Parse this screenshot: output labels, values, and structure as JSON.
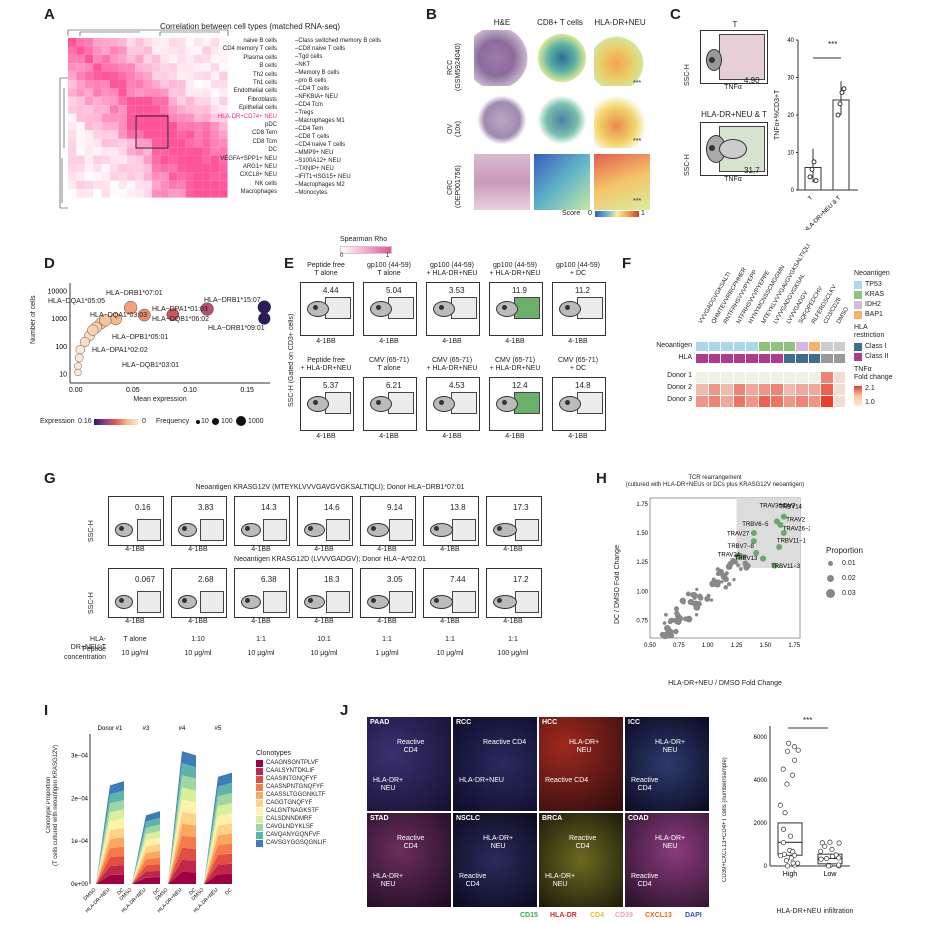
{
  "panels": {
    "A": "A",
    "B": "B",
    "C": "C",
    "D": "D",
    "E": "E",
    "F": "F",
    "G": "G",
    "H": "H",
    "I": "I",
    "J": "J"
  },
  "A": {
    "title": "Correlation between cell types (matched RNA-seq)",
    "left_labels": [
      "naive B cells",
      "CD4 memory T cells",
      "Plasma cells",
      "B cells",
      "Th2 cells",
      "Th1 cells",
      "Endothelial cells",
      "Fibroblasts",
      "Epithelial cells",
      "HLA-DR+CD74+ NEU",
      "pDC",
      "CD8 Tem",
      "CD8 Tcm",
      "DC",
      "VEGFA+SPP1+ NEU",
      "ARG1+ NEU",
      "CXCL8+ NEU",
      "NK cells",
      "Macrophages"
    ],
    "right_labels": [
      "Class switched memory B cells",
      "CD8 naive T cells",
      "Tgd cells",
      "NKT",
      "Memory B cells",
      "pro B cells",
      "CD4 T cells",
      "NFKBIA+ NEU",
      "CD4 Tcm",
      "Tregs",
      "Macrophages M1",
      "CD4 Tem",
      "CD8 T cells",
      "CD4 naive T cells",
      "MMP9+ NEU",
      "S100A12+ NEU",
      "TXNIP+ NEU",
      "IFIT1+ISG15+ NEU",
      "Macrophages M2",
      "Monocytes"
    ],
    "legend_title": "Spearman Rho",
    "legend_min": "0",
    "legend_max": "1"
  },
  "B": {
    "col_headers": [
      "H&E",
      "CD8+ T cells",
      "HLA-DR+NEU"
    ],
    "row_labels": [
      "RCC\n(GSM5924040)",
      "OV\n(10x)",
      "CRC\n(OEP001756)"
    ],
    "stars": "***",
    "score_label": "Score",
    "score_min": "0",
    "score_max": "1"
  },
  "C": {
    "flow_top_title": "T",
    "flow_bottom_title": "HLA-DR+NEU & T",
    "yaxis": "SSC-H",
    "xaxis": "TNFα",
    "pct_top": "4,90",
    "pct_bottom": "31,7",
    "bar_ylabel": "TNFα+%CD3+T",
    "bar_categories": [
      "T",
      "HLA-DR+NEU & T"
    ],
    "stars": "***",
    "yticks": [
      "0",
      "10",
      "20",
      "30",
      "40"
    ]
  },
  "D": {
    "ylabel": "Number of cells",
    "xlabel": "Mean expression",
    "yticks": [
      "10",
      "100",
      "1000",
      "10000"
    ],
    "xticks": [
      "0.00",
      "0.05",
      "0.10",
      "0.15"
    ],
    "point_labels": [
      "HLA−DRB1*07:01",
      "HLA−DQA1*05:05",
      "HLA−DRB1*15:07",
      "HLA−DPA1*01:03",
      "HLA−DQA1*03:03",
      "HLA−DQB1*06:02",
      "HLA−DRB1*09:01",
      "HLA−DPB1*05:01",
      "HLA−DPA1*02:02",
      "HLA−DQB1*03:01"
    ],
    "legend_expr": "Expression",
    "legend_expr_max": "0.16",
    "legend_expr_min": "0",
    "legend_freq": "Frequency",
    "freq_values": [
      "10",
      "100",
      "1000"
    ]
  },
  "E": {
    "yaxis": "SSC-H (Gated on CD3+ cells)",
    "xaxis": "4-1BB",
    "row1": [
      {
        "title": "Peptide free\nT alone",
        "pct": "4.44"
      },
      {
        "title": "gp100 (44-59)\nT alone",
        "pct": "5.04"
      },
      {
        "title": "gp100 (44-59)\n+ HLA-DR+NEU",
        "pct": "3.53"
      },
      {
        "title": "gp100 (44-59)\n+ HLA-DR+NEU",
        "pct": "11.9"
      },
      {
        "title": "gp100 (44-59)\n+ DC",
        "pct": "11.2"
      }
    ],
    "row2": [
      {
        "title": "Peptide free\n+ HLA-DR+NEU",
        "pct": "5.37"
      },
      {
        "title": "CMV (65-71)\nT alone",
        "pct": "6.21"
      },
      {
        "title": "CMV (65-71)\n+ HLA-DR+NEU",
        "pct": "4.53"
      },
      {
        "title": "CMV (65-71)\n+ HLA-DR+NEU",
        "pct": "12.4"
      },
      {
        "title": "CMV (65-71)\n+ DC",
        "pct": "14.8"
      }
    ]
  },
  "F": {
    "peptides": [
      "VVVGADGVGKSALTI",
      "QHMTEVVRRCPHHER",
      "RNTFRHSVVVPYEPP",
      "NTFRHSVVVPYEPPE",
      "HYNYMCNSSCMGGMN",
      "MTEYKLVVVGAVGVGKSALTIQLI",
      "LVVVGADGVGKSAL",
      "LVVVGADGV",
      "SQFQPEDCHV",
      "RLFERDSCLKV",
      "CD3/CD28",
      "DMSO"
    ],
    "row_neoantigen": "Neoantigen",
    "row_hla": "HLA",
    "donors": [
      "Donor 1",
      "Donor 2",
      "Donor 3"
    ],
    "legend_neo_title": "Neoantigen",
    "legend_neo": [
      "TP53",
      "KRAS",
      "IDH2",
      "BAP1"
    ],
    "legend_hla_title": "HLA\nrestriction",
    "legend_hla": [
      "Class I",
      "Class II"
    ],
    "legend_fc_title": "TNFα\nFold change",
    "legend_fc_max": "2.1",
    "legend_fc_min": "1.0",
    "colors": {
      "TP53": "#a8d8ea",
      "KRAS": "#8fc27a",
      "IDH2": "#d8b7e0",
      "BAP1": "#f7b267",
      "ClassI": "#3b6e8f",
      "ClassII": "#b03a8c"
    }
  },
  "G": {
    "title1": "Neoantigen KRASG12V (MTEYKLVVVGAVGVGKSALTIQLI); Donor HLA−DRB1*07:01",
    "title2": "Neoantigen KRASG12D (LVVVGADGV); Donor HLA−A*02:01",
    "yaxis": "SSC-H",
    "xaxis": "4-1BB",
    "row1_pct": [
      "0.16",
      "3.83",
      "14.3",
      "14.6",
      "9.14",
      "13.8",
      "17.3"
    ],
    "row2_pct": [
      "0.067",
      "2.68",
      "6.38",
      "18.3",
      "3.05",
      "7.44",
      "17.2"
    ],
    "ratio_label": "HLA-DR+NEU:T",
    "ratios": [
      "T alone",
      "1:10",
      "1:1",
      "10:1",
      "1:1",
      "1:1",
      "1:1"
    ],
    "conc_label": "Peptide\nconcentration",
    "concs": [
      "10 μg/ml",
      "10 μg/ml",
      "10 μg/ml",
      "10 μg/ml",
      "1 μg/ml",
      "10 μg/ml",
      "100 μg/ml"
    ]
  },
  "H": {
    "title": "TCR rearrangement\n(cultured with HLA-DR+NEUs or DCs plus KRASG12V neoantigen)",
    "xlabel": "HLA-DR+NEU / DMSO Fold Change",
    "ylabel": "DC / DMSO Fold Change",
    "xticks": [
      "0.50",
      "0.75",
      "1.00",
      "1.25",
      "1.50",
      "1.75"
    ],
    "yticks": [
      "0.75",
      "1.00",
      "1.25",
      "1.50",
      "1.75"
    ],
    "annotations": [
      "TRAV36/DV7",
      "TRBV14",
      "TRBV6−5",
      "TRAV2",
      "TRAV27",
      "TRAV26−2",
      "TRBV11−1",
      "TRAV24",
      "TRBV7−8",
      "TRBV13",
      "TRBV11−3"
    ],
    "legend_title": "Proportion",
    "legend_values": [
      "0.01",
      "0.02",
      "0.03"
    ]
  },
  "I": {
    "ylabel": "Clonotype Proportion\n(T cells cultured with neoantigen KRASG12V)",
    "yticks": [
      "0e+00",
      "1e−04",
      "2e−04",
      "3e−04"
    ],
    "donors": [
      "Donor #1",
      "#3",
      "#4",
      "#5"
    ],
    "xcats": [
      "DMSO",
      "HLA-DR+NEU",
      "DC"
    ],
    "legend_title": "Clonotypes",
    "clonotypes": [
      "CAAGNSGNTPLVF",
      "CAALSYNTDKLIF",
      "CAASINTGNQFYF",
      "CAASNPNTGNQFYF",
      "CAASSLTGGGNKLTF",
      "CAGGTGNQFYF",
      "CALGNTNAGKSTF",
      "CALSDNNDMRF",
      "CAVGLNDYKLSF",
      "CAVQANYGQNFVF",
      "CAVSGYGGSQGNLIF"
    ],
    "clonotype_colors": [
      "#9e0142",
      "#c1274a",
      "#e04f3f",
      "#f57b4a",
      "#fca85e",
      "#fdd38a",
      "#fff2aa",
      "#d9ef9b",
      "#9ed7a4",
      "#5fb3ab",
      "#3a7db8"
    ]
  },
  "J": {
    "tiles": [
      {
        "tag": "PAAD",
        "ann": [
          "Reactive\nCD4",
          "HLA-DR+\nNEU"
        ]
      },
      {
        "tag": "RCC",
        "ann": [
          "Reactive CD4",
          "HLA-DR+NEU"
        ]
      },
      {
        "tag": "HCC",
        "ann": [
          "HLA-DR+\nNEU",
          "Reactive CD4"
        ]
      },
      {
        "tag": "ICC",
        "ann": [
          "HLA-DR+\nNEU",
          "Reactive\nCD4"
        ]
      },
      {
        "tag": "STAD",
        "ann": [
          "Reactive\nCD4",
          "HLA-DR+\nNEU"
        ]
      },
      {
        "tag": "NSCLC",
        "ann": [
          "HLA-DR+\nNEU",
          "Reactive\nCD4"
        ]
      },
      {
        "tag": "BRCA",
        "ann": [
          "Reactive\nCD4",
          "HLA-DR+\nNEU"
        ]
      },
      {
        "tag": "COAD",
        "ann": [
          "HLA-DR+\nNEU",
          "Reactive\nCD4"
        ]
      }
    ],
    "channels": [
      {
        "name": "CD15",
        "color": "#3aa655"
      },
      {
        "name": "HLA-DR",
        "color": "#d62b2b"
      },
      {
        "name": "CD4",
        "color": "#e0c21a"
      },
      {
        "name": "CD39",
        "color": "#e8a0c8"
      },
      {
        "name": "CXCL13",
        "color": "#e36b2a"
      },
      {
        "name": "DAPI",
        "color": "#2f4fb8"
      }
    ],
    "box_ylabel": "CD39+CXCL13+CD4+T cells (number/sample)",
    "box_xlabel": "HLA-DR+NEU infiltration",
    "box_cats": [
      "High",
      "Low"
    ],
    "box_yticks": [
      "0",
      "2000",
      "4000",
      "6000"
    ],
    "stars": "***"
  },
  "chart_data": [
    {
      "type": "bar",
      "categories": [
        "T",
        "HLA-DR+NEU & T"
      ],
      "values": [
        6,
        24
      ],
      "points": [
        [
          3.5,
          5.5,
          7.5,
          2.5
        ],
        [
          20,
          23,
          26,
          27
        ]
      ],
      "ylabel": "TNFα+%CD3+T",
      "ylim": [
        0,
        40
      ]
    },
    {
      "type": "scatter",
      "xlabel": "Mean expression",
      "ylabel": "Number of cells",
      "yscale": "log",
      "xlim": [
        -0.005,
        0.17
      ],
      "ylim": [
        5,
        20000
      ],
      "points": [
        {
          "x": 0.048,
          "y": 2600,
          "expr": 0.05
        },
        {
          "x": 0.115,
          "y": 2300,
          "expr": 0.1
        },
        {
          "x": 0.165,
          "y": 2700,
          "expr": 0.16
        },
        {
          "x": 0.06,
          "y": 1400,
          "expr": 0.06
        },
        {
          "x": 0.085,
          "y": 1450,
          "expr": 0.09
        },
        {
          "x": 0.165,
          "y": 1050,
          "expr": 0.16
        },
        {
          "x": 0.035,
          "y": 1000,
          "expr": 0.04
        },
        {
          "x": 0.022,
          "y": 700,
          "expr": 0.03
        },
        {
          "x": 0.018,
          "y": 500,
          "expr": 0.02
        },
        {
          "x": 0.012,
          "y": 250,
          "expr": 0.01
        },
        {
          "x": 0.008,
          "y": 150,
          "expr": 0.01
        },
        {
          "x": 0.004,
          "y": 80,
          "expr": 0.0
        },
        {
          "x": 0.003,
          "y": 40,
          "expr": 0.0
        },
        {
          "x": 0.002,
          "y": 20,
          "expr": 0.0
        },
        {
          "x": 0.002,
          "y": 12,
          "expr": 0.0
        },
        {
          "x": 0.015,
          "y": 400,
          "expr": 0.02
        },
        {
          "x": 0.026,
          "y": 900,
          "expr": 0.03
        }
      ]
    },
    {
      "type": "scatter",
      "xlabel": "HLA-DR+NEU / DMSO Fold Change",
      "ylabel": "DC / DMSO Fold Change",
      "xlim": [
        0.5,
        1.8
      ],
      "ylim": [
        0.6,
        1.8
      ],
      "highlighted": [
        {
          "label": "TRAV36/DV7",
          "x": 1.6,
          "y": 1.6
        },
        {
          "label": "TRBV14",
          "x": 1.66,
          "y": 1.64
        },
        {
          "label": "TRAV2",
          "x": 1.63,
          "y": 1.57
        },
        {
          "label": "TRAV26−2",
          "x": 1.66,
          "y": 1.5
        },
        {
          "label": "TRBV6−5",
          "x": 1.4,
          "y": 1.5
        },
        {
          "label": "TRAV27",
          "x": 1.4,
          "y": 1.43
        },
        {
          "label": "TRBV11−1",
          "x": 1.62,
          "y": 1.38
        },
        {
          "label": "TRAV24",
          "x": 1.28,
          "y": 1.3
        },
        {
          "label": "TRBV7−8",
          "x": 1.42,
          "y": 1.33
        },
        {
          "label": "TRBV13",
          "x": 1.48,
          "y": 1.28
        },
        {
          "label": "TRBV11−3",
          "x": 1.58,
          "y": 1.22
        }
      ]
    },
    {
      "type": "area",
      "xlabel": "",
      "ylabel": "Clonotype Proportion",
      "ylim": [
        0,
        0.00035
      ],
      "groups": [
        "Donor #1",
        "#3",
        "#4",
        "#5"
      ],
      "categories": [
        "DMSO",
        "HLA-DR+NEU",
        "DC"
      ],
      "totals": [
        [
          1e-06,
          0.00023,
          0.00024
        ],
        [
          1e-06,
          0.00016,
          0.00017
        ],
        [
          1e-06,
          0.00031,
          0.0003
        ],
        [
          1e-06,
          0.00025,
          0.00026
        ]
      ]
    },
    {
      "type": "box",
      "categories": [
        "High",
        "Low"
      ],
      "ylabel": "CD39+CXCL13+CD4+T cells (number/sample)",
      "ylim": [
        0,
        6500
      ],
      "medians": [
        1100,
        350
      ],
      "q1": [
        500,
        100
      ],
      "q3": [
        2000,
        550
      ]
    }
  ]
}
